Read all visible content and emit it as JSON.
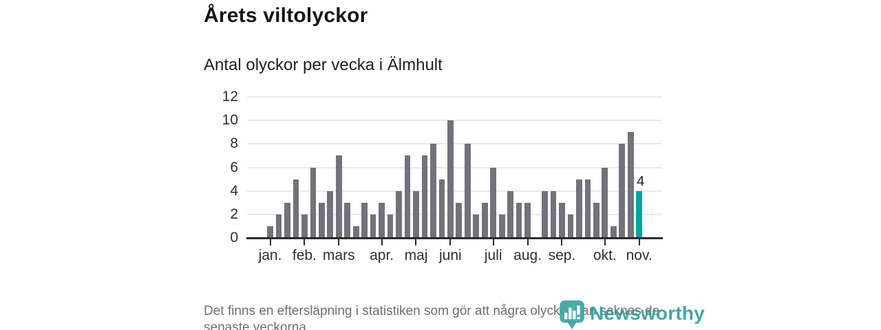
{
  "header": {
    "title": "Årets viltolyckor",
    "subtitle": "Antal olyckor per vecka i Älmhult"
  },
  "chart_data": {
    "type": "bar",
    "title": "Årets viltolyckor",
    "subtitle": "Antal olyckor per vecka i Älmhult",
    "x_unit": "vecka",
    "values": [
      1,
      2,
      3,
      5,
      2,
      6,
      3,
      4,
      7,
      3,
      1,
      3,
      2,
      3,
      2,
      4,
      7,
      4,
      7,
      8,
      5,
      10,
      3,
      8,
      2,
      3,
      6,
      2,
      4,
      3,
      3,
      0,
      4,
      4,
      3,
      2,
      5,
      5,
      3,
      6,
      1,
      8,
      9,
      4
    ],
    "highlight_index": 43,
    "highlight_value_label": "4",
    "y_ticks": [
      0,
      2,
      4,
      6,
      8,
      10,
      12
    ],
    "ylim": [
      0,
      12
    ],
    "grid": true,
    "legend": false,
    "month_ticks": [
      {
        "label": "jan.",
        "index": 0
      },
      {
        "label": "feb.",
        "index": 4
      },
      {
        "label": "mars",
        "index": 8
      },
      {
        "label": "apr.",
        "index": 13
      },
      {
        "label": "maj",
        "index": 17
      },
      {
        "label": "juni",
        "index": 21
      },
      {
        "label": "juli",
        "index": 26
      },
      {
        "label": "aug.",
        "index": 30
      },
      {
        "label": "sep.",
        "index": 34
      },
      {
        "label": "okt.",
        "index": 39
      },
      {
        "label": "nov.",
        "index": 43
      }
    ],
    "colors": {
      "bar": "#72727a",
      "highlight": "#00a5a0",
      "axis": "#2b2b2b",
      "grid": "#e9e9e9",
      "value_label": "#1e1e1e"
    }
  },
  "footer": {
    "lines": [
      "Det finns en eftersläpning i statistiken som gör att några olyckor kan saknas de",
      "senaste veckorna."
    ]
  },
  "logo": {
    "text": "Newsworthy",
    "icon": "newsworthy-pin-bar-chart-icon",
    "color": "#2f9e9b"
  }
}
